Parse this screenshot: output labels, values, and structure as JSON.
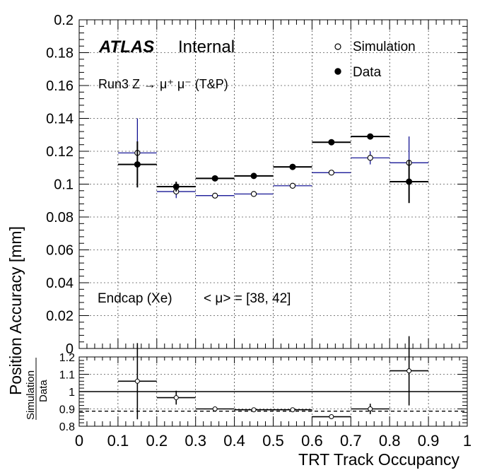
{
  "chart_data": [
    {
      "type": "scatter",
      "panel": "main",
      "ylabel": "Position Accuracy [mm]",
      "ylim": [
        0,
        0.2
      ],
      "xlim": [
        0,
        1
      ],
      "yticks": [
        0,
        0.02,
        0.04,
        0.06,
        0.08,
        0.1,
        0.12,
        0.14,
        0.16,
        0.18,
        0.2
      ],
      "ytick_labels": [
        "0",
        "0.02",
        "0.04",
        "0.06",
        "0.08",
        "0.1",
        "0.12",
        "0.14",
        "0.16",
        "0.18",
        "0.2"
      ],
      "grid": true,
      "legend_position": "top-right",
      "annotations": {
        "atlas": "ATLAS",
        "internal": "Internal",
        "run": "Run3 Z → μ⁺ μ⁻ (T&P)",
        "region": "Endcap (Xe)",
        "pileup": "< μ> = [38, 42]"
      },
      "series": [
        {
          "name": "Simulation",
          "marker": "open-circle",
          "color": "#00008b",
          "x": [
            0.15,
            0.25,
            0.35,
            0.45,
            0.55,
            0.65,
            0.75,
            0.85
          ],
          "xerr": [
            0.05,
            0.05,
            0.05,
            0.05,
            0.05,
            0.05,
            0.05,
            0.05
          ],
          "y": [
            0.119,
            0.0955,
            0.093,
            0.094,
            0.099,
            0.107,
            0.116,
            0.113
          ],
          "yerr": [
            0.021,
            0.004,
            0.0015,
            0.0015,
            0.0015,
            0.0015,
            0.004,
            0.016
          ]
        },
        {
          "name": "Data",
          "marker": "filled-circle",
          "color": "#000000",
          "x": [
            0.15,
            0.25,
            0.35,
            0.45,
            0.55,
            0.65,
            0.75,
            0.85
          ],
          "xerr": [
            0.05,
            0.05,
            0.05,
            0.05,
            0.05,
            0.05,
            0.05,
            0.05
          ],
          "y": [
            0.112,
            0.0985,
            0.1035,
            0.105,
            0.1105,
            0.1255,
            0.129,
            0.1015
          ],
          "yerr": [
            0.014,
            0.003,
            0.0015,
            0.0015,
            0.0015,
            0.0015,
            0.0015,
            0.013
          ]
        }
      ]
    },
    {
      "type": "scatter",
      "panel": "ratio",
      "ylabel_numerator": "Simulation",
      "ylabel_denominator": "Data",
      "xlabel": "TRT Track Occupancy",
      "xlim": [
        0,
        1
      ],
      "ylim": [
        0.8,
        1.2
      ],
      "xticks": [
        0,
        0.1,
        0.2,
        0.3,
        0.4,
        0.5,
        0.6,
        0.7,
        0.8,
        0.9,
        1
      ],
      "xtick_labels": [
        "0",
        "0.1",
        "0.2",
        "0.3",
        "0.4",
        "0.5",
        "0.6",
        "0.7",
        "0.8",
        "0.9",
        "1"
      ],
      "yticks": [
        0.8,
        0.9,
        1,
        1.1,
        1.2
      ],
      "ytick_labels": [
        "0.8",
        "0.9",
        "1",
        "1.1",
        "1.2"
      ],
      "reference_line": 1,
      "dashed_line": 0.887,
      "grid": true,
      "series": [
        {
          "name": "Simulation/Data",
          "marker": "open-circle",
          "color": "#000000",
          "x": [
            0.15,
            0.25,
            0.35,
            0.45,
            0.55,
            0.65,
            0.75,
            0.85
          ],
          "xerr": [
            0.05,
            0.05,
            0.05,
            0.05,
            0.05,
            0.05,
            0.05,
            0.05
          ],
          "y": [
            1.06,
            0.965,
            0.9,
            0.895,
            0.895,
            0.855,
            0.9,
            1.12
          ],
          "yerr": [
            0.22,
            0.04,
            0.01,
            0.005,
            0.008,
            0.008,
            0.03,
            0.2
          ]
        }
      ]
    }
  ]
}
